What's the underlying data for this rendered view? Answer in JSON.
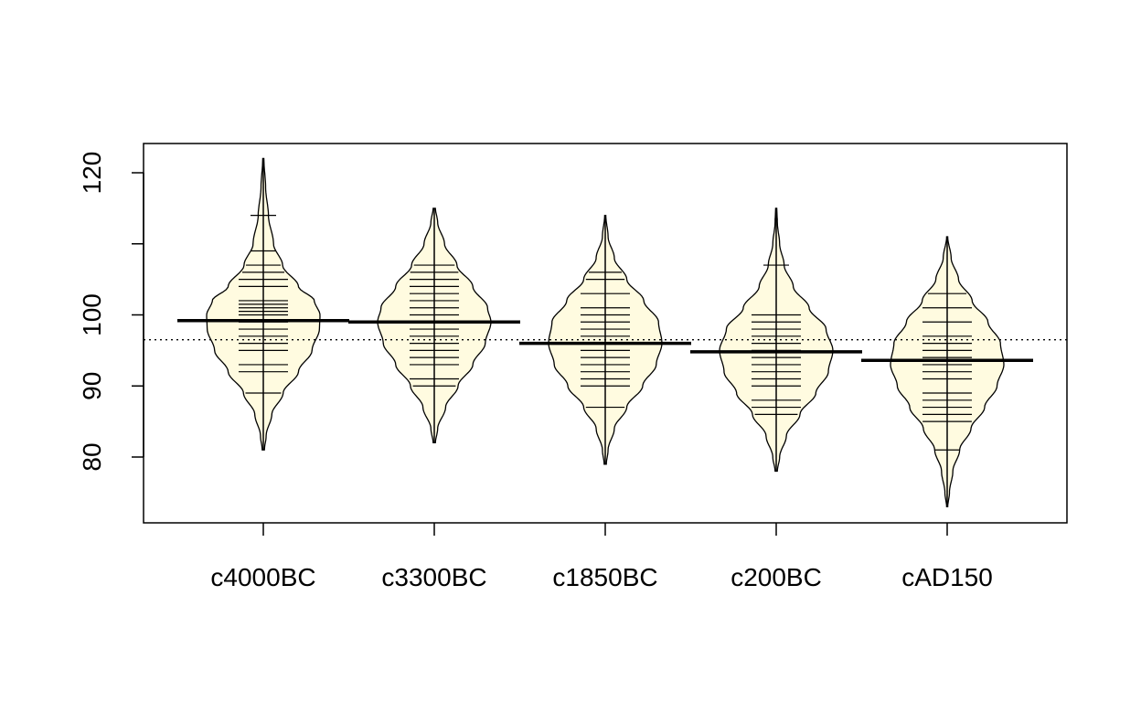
{
  "chart_data": {
    "type": "beanplot",
    "title": "",
    "xlabel": "",
    "ylabel": "",
    "ylim": [
      71,
      124
    ],
    "yticks": [
      80,
      90,
      100,
      120
    ],
    "overall_mean": 96.5,
    "grid": false,
    "legend": "none",
    "colors": {
      "bean_fill": "#fffbe0",
      "line": "#000000"
    },
    "categories": [
      "c4000BC",
      "c3300BC",
      "c1850BC",
      "c200BC",
      "cAD150"
    ],
    "beans": [
      {
        "category": "c4000BC",
        "mean": 99.2,
        "range": [
          81,
          122
        ],
        "density": [
          [
            81,
            0.02
          ],
          [
            83,
            0.05
          ],
          [
            86,
            0.15
          ],
          [
            89,
            0.35
          ],
          [
            92,
            0.62
          ],
          [
            95,
            0.86
          ],
          [
            98,
            0.99
          ],
          [
            100,
            1.0
          ],
          [
            102,
            0.9
          ],
          [
            104,
            0.62
          ],
          [
            107,
            0.34
          ],
          [
            110,
            0.18
          ],
          [
            114,
            0.09
          ],
          [
            118,
            0.04
          ],
          [
            122,
            0.01
          ]
        ],
        "observations": [
          89,
          92,
          93,
          95,
          96,
          97,
          98,
          99,
          100,
          100.5,
          101,
          101.5,
          102,
          104,
          105,
          106,
          107,
          109,
          114
        ]
      },
      {
        "category": "c3300BC",
        "mean": 99.0,
        "range": [
          82,
          115
        ],
        "density": [
          [
            82,
            0.02
          ],
          [
            84,
            0.06
          ],
          [
            87,
            0.2
          ],
          [
            90,
            0.42
          ],
          [
            93,
            0.68
          ],
          [
            96,
            0.9
          ],
          [
            99,
            1.0
          ],
          [
            101,
            0.94
          ],
          [
            104,
            0.68
          ],
          [
            107,
            0.4
          ],
          [
            110,
            0.18
          ],
          [
            113,
            0.06
          ],
          [
            115,
            0.02
          ]
        ],
        "observations": [
          90,
          91,
          93,
          94,
          95,
          96,
          97,
          98,
          99,
          100,
          101,
          102,
          103,
          104,
          105,
          106,
          107
        ]
      },
      {
        "category": "c1850BC",
        "mean": 96.0,
        "range": [
          79,
          114
        ],
        "density": [
          [
            79,
            0.02
          ],
          [
            81,
            0.05
          ],
          [
            84,
            0.16
          ],
          [
            87,
            0.38
          ],
          [
            90,
            0.66
          ],
          [
            93,
            0.9
          ],
          [
            96,
            1.0
          ],
          [
            99,
            0.94
          ],
          [
            102,
            0.68
          ],
          [
            105,
            0.38
          ],
          [
            108,
            0.16
          ],
          [
            111,
            0.05
          ],
          [
            114,
            0.01
          ]
        ],
        "observations": [
          87,
          90,
          91,
          92,
          93,
          94,
          95,
          96,
          97,
          98,
          99,
          100,
          101,
          103,
          105,
          106
        ]
      },
      {
        "category": "c200BC",
        "mean": 94.8,
        "range": [
          78,
          115
        ],
        "density": [
          [
            78,
            0.02
          ],
          [
            80,
            0.06
          ],
          [
            83,
            0.18
          ],
          [
            86,
            0.42
          ],
          [
            89,
            0.7
          ],
          [
            92,
            0.92
          ],
          [
            95,
            1.0
          ],
          [
            98,
            0.88
          ],
          [
            101,
            0.58
          ],
          [
            104,
            0.3
          ],
          [
            107,
            0.14
          ],
          [
            110,
            0.06
          ],
          [
            113,
            0.02
          ],
          [
            115,
            0.01
          ]
        ],
        "observations": [
          86,
          87,
          88,
          90,
          91,
          92,
          93,
          94,
          95,
          96,
          97,
          98,
          99,
          100,
          107
        ]
      },
      {
        "category": "cAD150",
        "mean": 93.6,
        "range": [
          73,
          111
        ],
        "density": [
          [
            73,
            0.01
          ],
          [
            75,
            0.04
          ],
          [
            78,
            0.1
          ],
          [
            81,
            0.22
          ],
          [
            84,
            0.42
          ],
          [
            87,
            0.66
          ],
          [
            90,
            0.88
          ],
          [
            93,
            1.0
          ],
          [
            96,
            0.94
          ],
          [
            99,
            0.72
          ],
          [
            102,
            0.44
          ],
          [
            105,
            0.2
          ],
          [
            108,
            0.07
          ],
          [
            111,
            0.01
          ]
        ],
        "observations": [
          81,
          85,
          86,
          87,
          88,
          89,
          91,
          92,
          93,
          94,
          95,
          96,
          97,
          99,
          101,
          103
        ]
      }
    ]
  }
}
